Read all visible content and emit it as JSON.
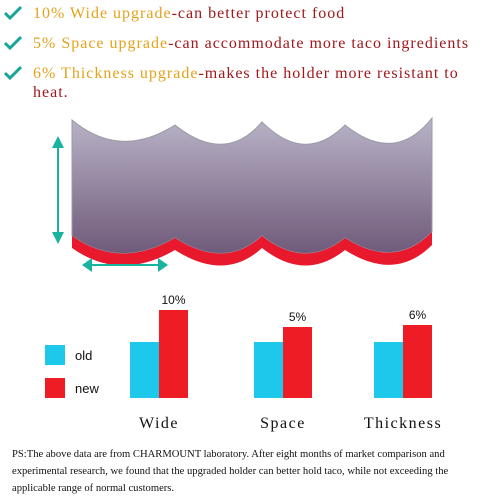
{
  "bullets": [
    {
      "highlight": "10% Wide upgrade",
      "text": "-can better protect food"
    },
    {
      "highlight": "5% Space upgrade",
      "text": "-can accommodate more taco ingredients"
    },
    {
      "highlight": "6% Thickness upgrade",
      "text": "-makes the holder more resistant to heat."
    }
  ],
  "chart_data": {
    "type": "bar",
    "categories": [
      "Wide",
      "Space",
      "Thickness"
    ],
    "series": [
      {
        "name": "old",
        "color": "#1ec8ea",
        "values": [
          56,
          56,
          56
        ]
      },
      {
        "name": "new",
        "color": "#ee1c24",
        "values": [
          88,
          71,
          73
        ]
      }
    ],
    "annotations": [
      "10%",
      "5%",
      "6%"
    ],
    "ylim": [
      0,
      100
    ]
  },
  "ps": "PS:The above data are from CHARMOUNT laboratory. After eight months of market comparison and experimental research, we found that the upgraded holder can better hold taco, while not exceeding the applicable range of normal customers."
}
